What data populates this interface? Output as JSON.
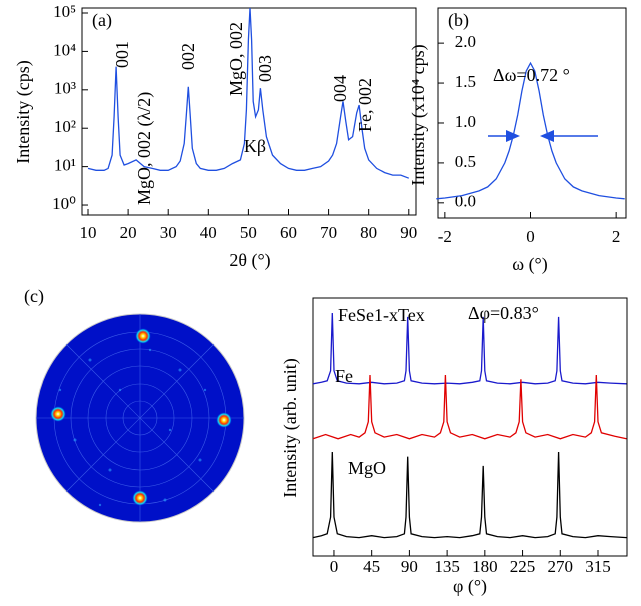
{
  "chart_data": [
    {
      "type": "line",
      "log_y": true,
      "color": "#1f4fe0",
      "xlabel": "2θ (°)",
      "ylabel": "Intensity (cps)",
      "annotations": [
        "(a)",
        "001",
        "MgO, 002 (λ/2)",
        "002",
        "Kβ",
        "MgO, 002",
        "003",
        "004",
        "Fe, 002"
      ],
      "xlim": [
        8.5,
        91.8
      ],
      "xticks": [
        10,
        20,
        30,
        40,
        50,
        60,
        70,
        80,
        90
      ],
      "ylim": [
        0.55,
        135000
      ],
      "yticks": [
        {
          "value": 1,
          "label": "10⁰"
        },
        {
          "value": 10,
          "label": "10¹"
        },
        {
          "value": 100,
          "label": "10²"
        },
        {
          "value": 1000,
          "label": "10³"
        },
        {
          "value": 10000,
          "label": "10⁴"
        },
        {
          "value": 100000,
          "label": "10⁵"
        }
      ],
      "x": [
        10,
        12,
        14,
        15,
        16,
        16.5,
        17,
        17.5,
        18,
        19,
        20,
        22,
        24,
        26,
        28,
        30,
        32,
        33,
        34,
        34.5,
        35,
        35.5,
        36,
        37,
        38,
        40,
        42,
        44,
        46,
        48,
        49,
        49.5,
        50,
        50.4,
        50.8,
        51.2,
        51.8,
        52.5,
        53,
        53.6,
        54.5,
        56,
        58,
        60,
        62,
        64,
        66,
        68,
        70,
        71,
        72,
        73,
        73.6,
        74.3,
        75,
        76,
        77,
        77.6,
        78.3,
        79,
        80,
        82,
        84,
        86,
        88,
        90
      ],
      "values": [
        9,
        8,
        8,
        9,
        20,
        200,
        4000,
        200,
        20,
        11,
        12,
        15,
        10,
        9,
        8,
        8,
        10,
        14,
        40,
        200,
        1200,
        200,
        30,
        12,
        9,
        8,
        8,
        9,
        12,
        15,
        40,
        300,
        20000,
        135000,
        20000,
        500,
        200,
        300,
        1100,
        300,
        60,
        20,
        12,
        9,
        8,
        8,
        9,
        10,
        14,
        20,
        40,
        200,
        500,
        150,
        50,
        60,
        250,
        400,
        100,
        30,
        15,
        9,
        7,
        6,
        6,
        5
      ]
    },
    {
      "type": "line",
      "color": "#1f4fe0",
      "xlabel": "ω (°)",
      "ylabel": "Intensity (x10⁴ cps)",
      "annotations": [
        "(b)",
        "Δω=0.72 °"
      ],
      "xlim": [
        -2.16,
        2.23
      ],
      "xticks": [
        -2,
        0,
        2
      ],
      "ylim": [
        -0.19,
        2.44
      ],
      "yticks": [
        {
          "value": 0,
          "label": "0.0"
        },
        {
          "value": 0.5,
          "label": "0.5"
        },
        {
          "value": 1,
          "label": "1.0"
        },
        {
          "value": 1.5,
          "label": "1.5"
        },
        {
          "value": 2,
          "label": "2.0"
        }
      ],
      "x": [
        -2.2,
        -2,
        -1.6,
        -1.2,
        -1,
        -0.8,
        -0.6,
        -0.5,
        -0.4,
        -0.3,
        -0.2,
        -0.1,
        0,
        0.1,
        0.2,
        0.3,
        0.4,
        0.5,
        0.6,
        0.8,
        1,
        1.2,
        1.6,
        2,
        2.2
      ],
      "values": [
        0.05,
        0.06,
        0.09,
        0.15,
        0.2,
        0.3,
        0.5,
        0.65,
        0.85,
        1.1,
        1.4,
        1.65,
        1.75,
        1.65,
        1.4,
        1.1,
        0.85,
        0.65,
        0.5,
        0.3,
        0.2,
        0.15,
        0.09,
        0.06,
        0.05
      ]
    },
    {
      "type": "line",
      "offset_series": true,
      "xlabel": "φ (°)",
      "ylabel": "Intensity (arb. unit)",
      "annotations": [
        "Δφ=0.83°"
      ],
      "xlim": [
        -25,
        349.6
      ],
      "xticks": [
        0,
        45,
        90,
        135,
        180,
        225,
        270,
        315
      ],
      "series": [
        {
          "name": "FeSe1-xTex",
          "color": "#1a1acc",
          "x": [
            -25,
            -15,
            -8,
            -4,
            -2,
            0,
            4,
            15,
            30,
            45,
            60,
            75,
            84,
            86,
            88,
            90,
            92,
            105,
            120,
            135,
            150,
            165,
            174,
            176,
            178,
            180,
            182,
            195,
            210,
            225,
            240,
            255,
            264,
            266,
            268,
            270,
            272,
            285,
            300,
            315,
            330,
            349
          ],
          "values": [
            0.08,
            0.1,
            0.12,
            0.25,
            1.0,
            0.25,
            0.12,
            0.09,
            0.08,
            0.1,
            0.08,
            0.09,
            0.12,
            0.25,
            0.95,
            0.25,
            0.12,
            0.09,
            0.08,
            0.09,
            0.08,
            0.1,
            0.12,
            0.25,
            0.95,
            0.25,
            0.12,
            0.09,
            0.08,
            0.1,
            0.08,
            0.09,
            0.12,
            0.25,
            0.95,
            0.25,
            0.12,
            0.09,
            0.08,
            0.1,
            0.09,
            0.08
          ]
        },
        {
          "name": "Fe",
          "color": "#e00000",
          "x": [
            -25,
            -10,
            5,
            20,
            30,
            37,
            41,
            43,
            45,
            49,
            60,
            75,
            90,
            105,
            120,
            127,
            131,
            133,
            135,
            139,
            150,
            165,
            180,
            195,
            210,
            217,
            221,
            223,
            225,
            229,
            240,
            255,
            270,
            285,
            300,
            307,
            311,
            313,
            315,
            319,
            335,
            349
          ],
          "values": [
            0.25,
            0.3,
            0.25,
            0.3,
            0.27,
            0.32,
            0.45,
            1.0,
            0.45,
            0.32,
            0.27,
            0.3,
            0.25,
            0.3,
            0.27,
            0.32,
            0.45,
            1.0,
            0.45,
            0.32,
            0.27,
            0.3,
            0.25,
            0.3,
            0.27,
            0.32,
            0.45,
            0.95,
            0.45,
            0.32,
            0.27,
            0.3,
            0.25,
            0.3,
            0.27,
            0.32,
            0.45,
            1.0,
            0.45,
            0.32,
            0.28,
            0.25
          ]
        },
        {
          "name": "MgO",
          "color": "#000000",
          "x": [
            -25,
            -15,
            -8,
            -4,
            -2,
            0,
            4,
            15,
            30,
            45,
            60,
            75,
            84,
            86,
            88,
            90,
            92,
            105,
            120,
            135,
            150,
            165,
            174,
            176,
            178,
            180,
            182,
            195,
            210,
            225,
            240,
            255,
            264,
            266,
            268,
            270,
            272,
            285,
            300,
            315,
            330,
            349
          ],
          "values": [
            0.08,
            0.1,
            0.12,
            0.3,
            1.0,
            0.3,
            0.12,
            0.09,
            0.08,
            0.1,
            0.08,
            0.09,
            0.12,
            0.3,
            0.95,
            0.3,
            0.12,
            0.09,
            0.08,
            0.09,
            0.08,
            0.1,
            0.12,
            0.3,
            0.85,
            0.3,
            0.12,
            0.09,
            0.08,
            0.1,
            0.08,
            0.09,
            0.12,
            0.3,
            1.0,
            0.3,
            0.12,
            0.09,
            0.08,
            0.1,
            0.09,
            0.08
          ]
        }
      ]
    }
  ],
  "pole_figure": {
    "panel_label": "(c)"
  }
}
